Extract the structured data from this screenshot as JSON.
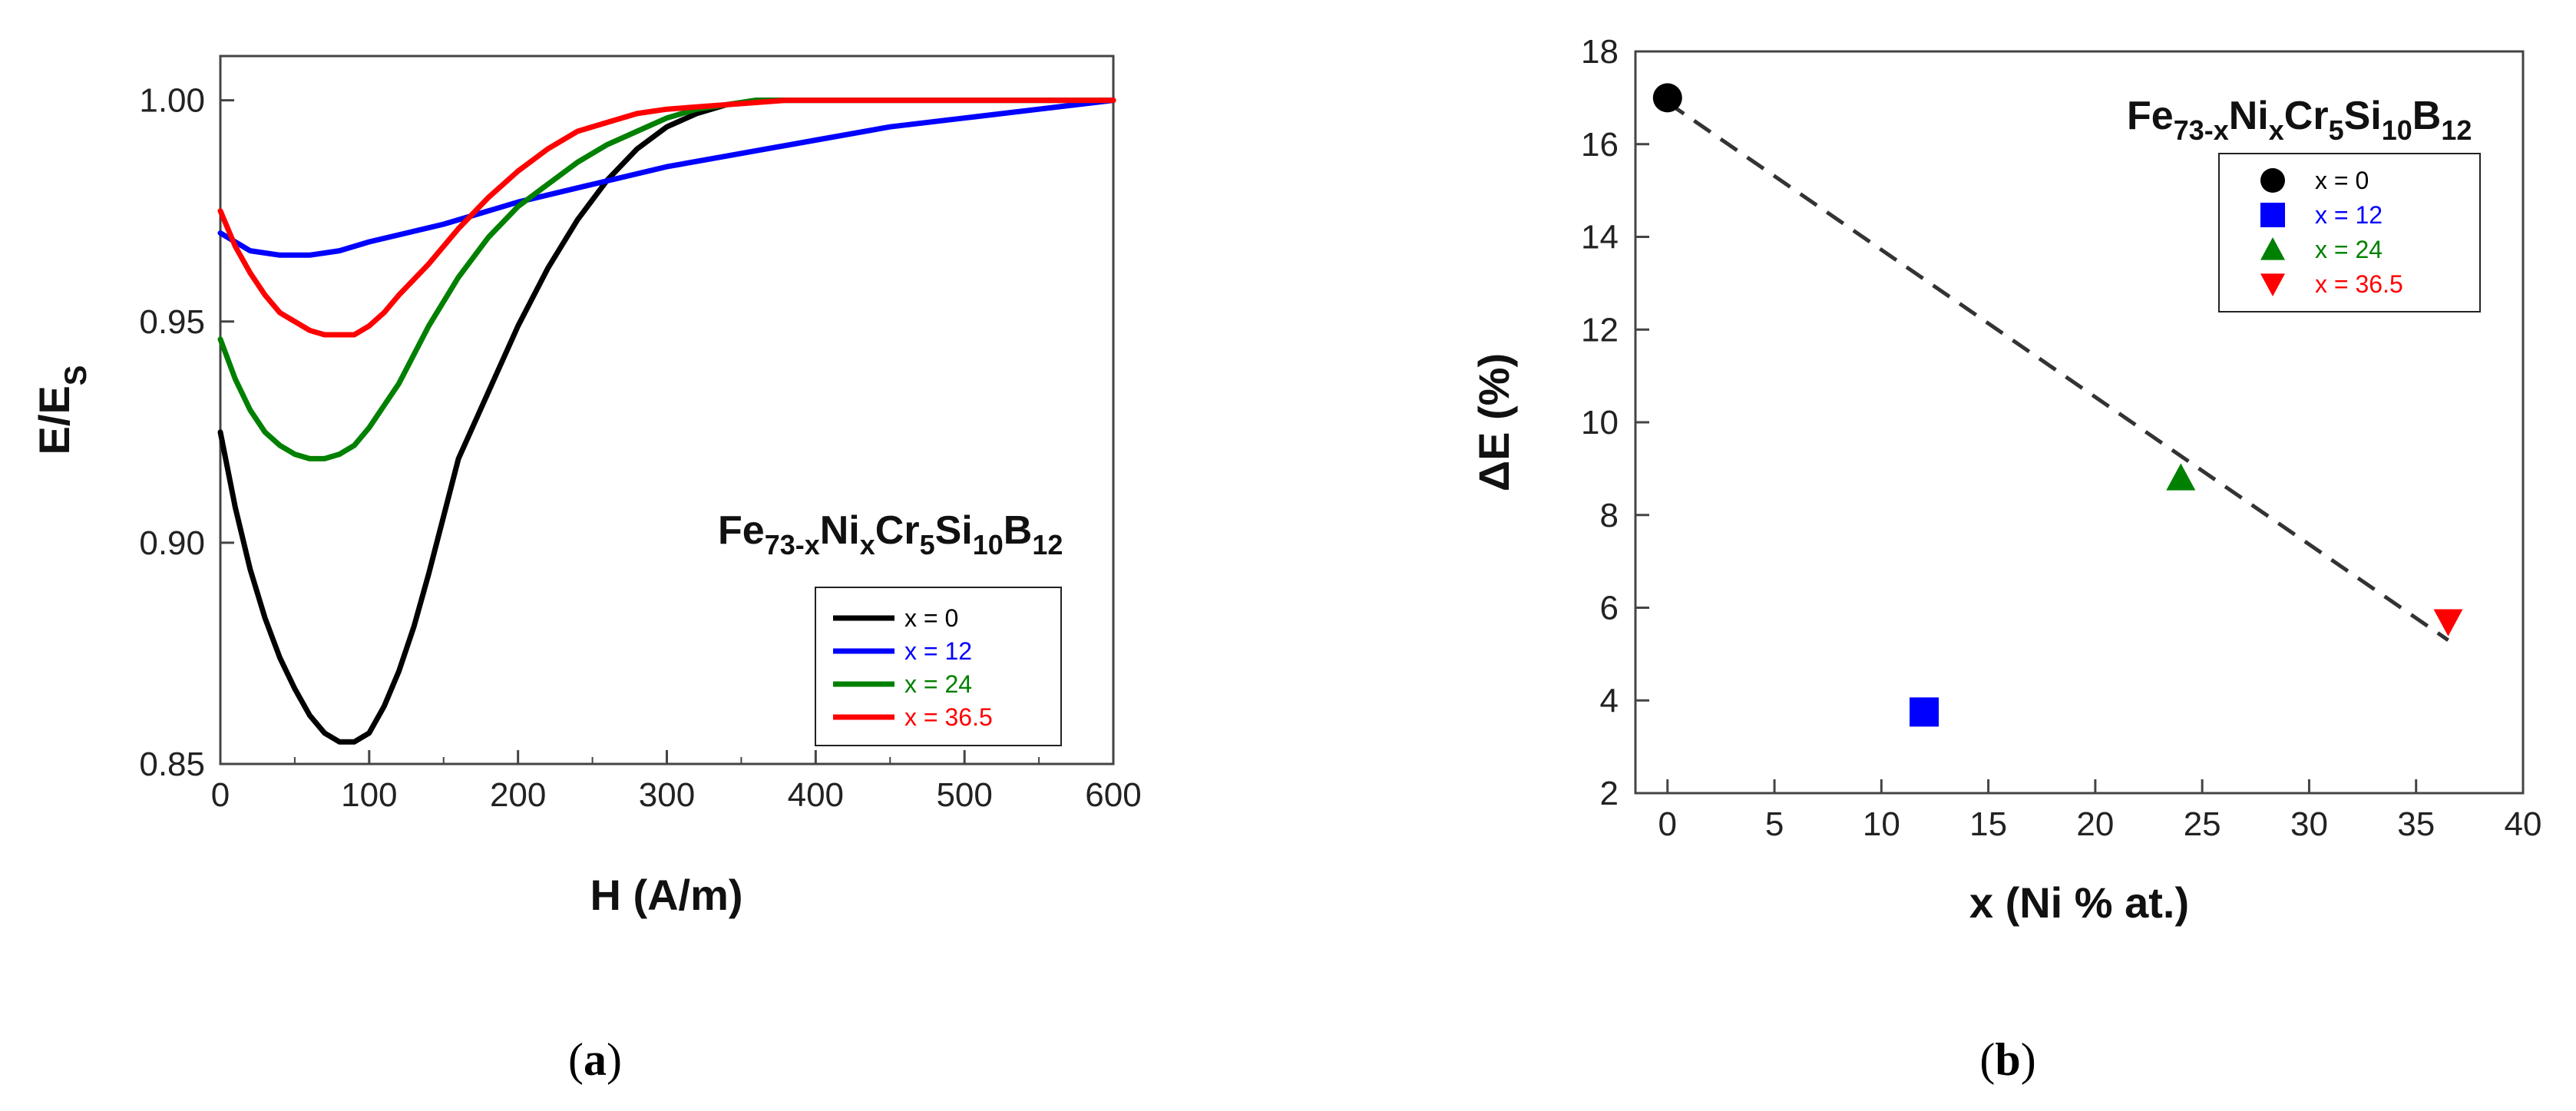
{
  "chart_data": [
    {
      "type": "line",
      "panel": "a",
      "caption_letter": "a",
      "xlabel": "H (A/m)",
      "ylabel_main": "E/E",
      "ylabel_sub": "S",
      "xlim": [
        0,
        600
      ],
      "ylim": [
        0.85,
        1.01
      ],
      "xticks": [
        0,
        100,
        200,
        300,
        400,
        500,
        600
      ],
      "yticks": [
        0.85,
        0.9,
        0.95,
        1.0
      ],
      "ytick_labels": [
        "0.85",
        "0.90",
        "0.95",
        "1.00"
      ],
      "formula": {
        "base": [
          "Fe",
          "Ni",
          "Cr",
          "Si",
          "B"
        ],
        "subs": [
          "73-x",
          "x",
          "5",
          "10",
          "12"
        ]
      },
      "series": [
        {
          "name": "x = 0",
          "color": "#000000",
          "x": [
            0,
            10,
            20,
            30,
            40,
            50,
            60,
            70,
            80,
            90,
            100,
            110,
            120,
            130,
            140,
            150,
            160,
            180,
            200,
            220,
            240,
            260,
            280,
            300,
            320,
            340,
            360,
            380,
            400,
            450,
            500,
            600
          ],
          "y": [
            0.925,
            0.908,
            0.894,
            0.883,
            0.874,
            0.867,
            0.861,
            0.857,
            0.855,
            0.855,
            0.857,
            0.863,
            0.871,
            0.881,
            0.893,
            0.906,
            0.919,
            0.934,
            0.949,
            0.962,
            0.973,
            0.982,
            0.989,
            0.994,
            0.997,
            0.999,
            1.0,
            1.0,
            1.0,
            1.0,
            1.0,
            1.0
          ]
        },
        {
          "name": "x = 12",
          "color": "#0000ff",
          "x": [
            0,
            20,
            40,
            60,
            80,
            100,
            150,
            200,
            250,
            300,
            350,
            400,
            450,
            500,
            550,
            600
          ],
          "y": [
            0.97,
            0.966,
            0.965,
            0.965,
            0.966,
            0.968,
            0.972,
            0.977,
            0.981,
            0.985,
            0.988,
            0.991,
            0.994,
            0.996,
            0.998,
            1.0
          ]
        },
        {
          "name": "x = 24",
          "color": "#008000",
          "x": [
            0,
            10,
            20,
            30,
            40,
            50,
            60,
            70,
            80,
            90,
            100,
            120,
            140,
            160,
            180,
            200,
            220,
            240,
            260,
            280,
            300,
            320,
            340,
            360,
            380,
            400,
            450,
            500,
            600
          ],
          "y": [
            0.946,
            0.937,
            0.93,
            0.925,
            0.922,
            0.92,
            0.919,
            0.919,
            0.92,
            0.922,
            0.926,
            0.936,
            0.949,
            0.96,
            0.969,
            0.976,
            0.981,
            0.986,
            0.99,
            0.993,
            0.996,
            0.998,
            0.999,
            1.0,
            1.0,
            1.0,
            1.0,
            1.0,
            1.0
          ]
        },
        {
          "name": "x = 36.5",
          "color": "#ff0000",
          "x": [
            0,
            10,
            20,
            30,
            40,
            50,
            60,
            70,
            80,
            90,
            100,
            110,
            120,
            140,
            160,
            180,
            200,
            220,
            240,
            260,
            280,
            300,
            340,
            380,
            400,
            450,
            500,
            600
          ],
          "y": [
            0.975,
            0.967,
            0.961,
            0.956,
            0.952,
            0.95,
            0.948,
            0.947,
            0.947,
            0.947,
            0.949,
            0.952,
            0.956,
            0.963,
            0.971,
            0.978,
            0.984,
            0.989,
            0.993,
            0.995,
            0.997,
            0.998,
            0.999,
            1.0,
            1.0,
            1.0,
            1.0,
            1.0
          ]
        }
      ]
    },
    {
      "type": "scatter",
      "panel": "b",
      "caption_letter": "b",
      "xlabel": "x (Ni % at.)",
      "ylabel": "ΔE (%)",
      "xlim": [
        -1.5,
        40
      ],
      "ylim": [
        2,
        18
      ],
      "xticks": [
        0,
        5,
        10,
        15,
        20,
        25,
        30,
        35,
        40
      ],
      "yticks": [
        2,
        4,
        6,
        8,
        10,
        12,
        14,
        16,
        18
      ],
      "formula": {
        "base": [
          "Fe",
          "Ni",
          "Cr",
          "Si",
          "B"
        ],
        "subs": [
          "73-x",
          "x",
          "5",
          "10",
          "12"
        ]
      },
      "fit_line": {
        "x": [
          0,
          36.5
        ],
        "y": [
          16.9,
          5.3
        ],
        "style": "dashed",
        "color": "#333333"
      },
      "series": [
        {
          "name": "x = 0",
          "color": "#000000",
          "marker": "circle",
          "x": [
            0
          ],
          "y": [
            17.0
          ]
        },
        {
          "name": "x = 12",
          "color": "#0000ff",
          "marker": "square",
          "x": [
            12
          ],
          "y": [
            3.75
          ]
        },
        {
          "name": "x = 24",
          "color": "#008000",
          "marker": "triangle-up",
          "x": [
            24
          ],
          "y": [
            8.8
          ]
        },
        {
          "name": "x = 36.5",
          "color": "#ff0000",
          "marker": "triangle-down",
          "x": [
            36.5
          ],
          "y": [
            5.7
          ]
        }
      ]
    }
  ]
}
